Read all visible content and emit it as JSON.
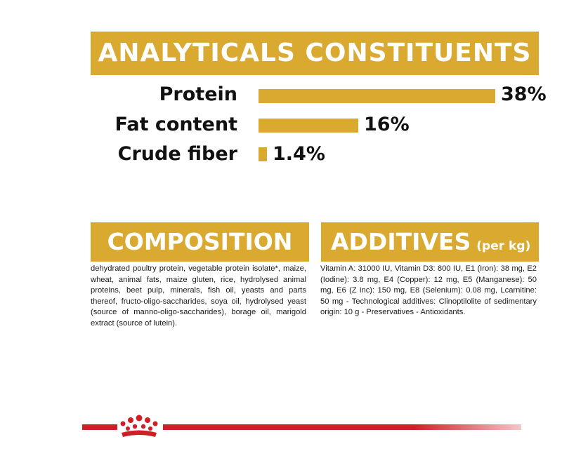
{
  "analyticals": {
    "title": "ANALYTICALS CONSTITUENTS",
    "rows": [
      {
        "label": "Protein",
        "value_text": "38%",
        "value": 38
      },
      {
        "label": "Fat content",
        "value_text": "16%",
        "value": 16
      },
      {
        "label": "Crude fiber",
        "value_text": "1.4%",
        "value": 1.4
      }
    ]
  },
  "composition": {
    "title": "COMPOSITION",
    "text": "dehydrated poultry protein, vegetable protein isolate*, maize, wheat, animal fats, maize gluten, rice, hydrolysed animal proteins, beet pulp, minerals, fish oil, yeasts and parts thereof, fructo-oligo-saccharides, soya oil, hydrolysed yeast (source of manno-oligo-saccharides), borage oil, marigold extract (source of lutein)."
  },
  "additives": {
    "title": "ADDITIVES",
    "title_suffix": "(per kg)",
    "text": "Vitamin A: 31000 IU, Vitamin D3: 800 IU, E1 (Iron): 38 mg, E2 (Iodine): 3.8 mg, E4 (Copper): 12 mg, E5 (Manganese): 50 mg, E6 (Z inc): 150 mg, E8 (Selenium): 0.08 mg, Lcarnitine: 50 mg - Technological additives: Clinoptilolite of sedimentary origin: 10 g - Preservatives - Antioxidants."
  },
  "colors": {
    "accent": "#d9a930",
    "brand_red": "#cf2027"
  },
  "icons": {
    "brand": "royal-canin-crown-icon"
  }
}
